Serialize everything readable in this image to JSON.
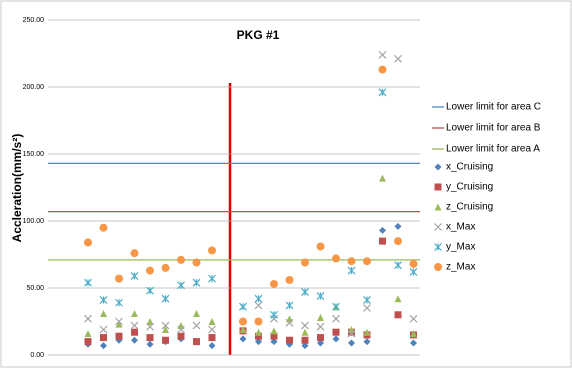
{
  "chart_data": {
    "type": "scatter",
    "title": "PKG #1",
    "y_label": "Accleration(mm/s²)",
    "categories": [
      null,
      null,
      null,
      null,
      null,
      null,
      null,
      null,
      null,
      null,
      null,
      null,
      null,
      null,
      null,
      null,
      null,
      null,
      null,
      null,
      null,
      null
    ],
    "ylim": [
      0,
      250
    ],
    "yticks": [
      {
        "value": 0,
        "label": "0.00"
      },
      {
        "value": 50,
        "label": "50.00"
      },
      {
        "value": 100,
        "label": "100.00"
      },
      {
        "value": 150,
        "label": "150.00"
      },
      {
        "value": 200,
        "label": "200.00"
      },
      {
        "value": 250,
        "label": "250.00"
      }
    ],
    "grid": true,
    "legend": "right",
    "reference_lines": [
      {
        "name": "Lower limit for area C",
        "color": "#4a8ac8",
        "value": 143
      },
      {
        "name": "Lower limit for area B",
        "color": "#c0504d",
        "value": 107
      },
      {
        "name": "Lower limit for area A",
        "color": "#9bbb59",
        "value": 71
      }
    ],
    "series": [
      {
        "name": "x_Cruising",
        "color": "#4f81bd",
        "marker": "diamond",
        "values": [
          8,
          7,
          11,
          11,
          8,
          10,
          12,
          10,
          7,
          null,
          12,
          10,
          10,
          8,
          7,
          9,
          12,
          9,
          10,
          93,
          96,
          9
        ]
      },
      {
        "name": "y_Cruising",
        "color": "#c0504d",
        "marker": "square",
        "values": [
          10,
          13,
          14,
          17,
          13,
          11,
          14,
          10,
          13,
          null,
          18,
          14,
          14,
          11,
          11,
          13,
          17,
          17,
          15,
          85,
          30,
          15
        ]
      },
      {
        "name": "z_Cruising",
        "color": "#9bbb59",
        "marker": "triangle",
        "values": [
          16,
          31,
          23,
          31,
          25,
          19,
          22,
          31,
          25,
          null,
          19,
          17,
          18,
          27,
          17,
          28,
          36,
          19,
          17,
          132,
          42,
          16
        ]
      },
      {
        "name": "x_Max",
        "color": "#a5a5a5",
        "marker": "cross",
        "values": [
          27,
          19,
          25,
          22,
          21,
          22,
          19,
          22,
          19,
          null,
          36,
          37,
          27,
          24,
          22,
          21,
          27,
          16,
          35,
          224,
          221,
          27
        ]
      },
      {
        "name": "y_Max",
        "color": "#4bacc6",
        "marker": "star",
        "values": [
          54,
          41,
          39,
          59,
          48,
          42,
          52,
          54,
          57,
          null,
          36,
          42,
          30,
          37,
          47,
          44,
          36,
          63,
          41,
          196,
          67,
          62
        ]
      },
      {
        "name": "z_Max",
        "color": "#f79646",
        "marker": "circle",
        "values": [
          84,
          95,
          57,
          76,
          63,
          65,
          71,
          69,
          78,
          null,
          25,
          25,
          53,
          56,
          69,
          81,
          72,
          70,
          70,
          213,
          85,
          68
        ]
      }
    ]
  }
}
